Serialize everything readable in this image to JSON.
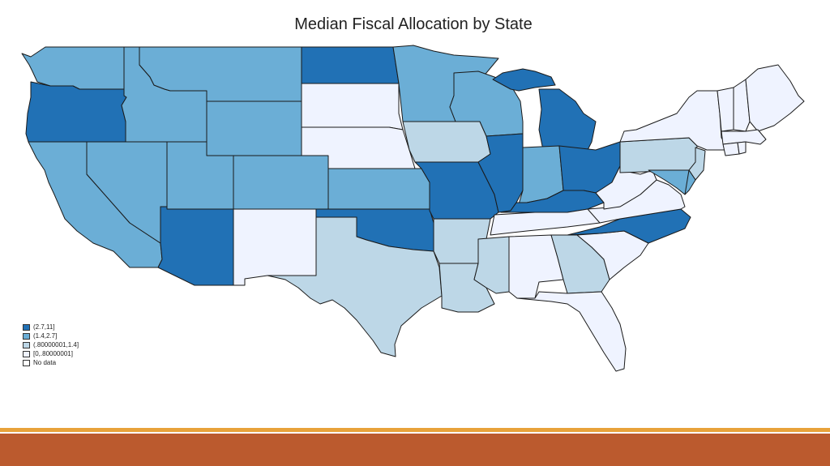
{
  "map": {
    "title": "Median Fiscal Allocation by State",
    "colors": {
      "c4": "#2171b5",
      "c3": "#6baed6",
      "c2": "#bdd7e7",
      "c1": "#eff3ff",
      "none": "#ffffff",
      "stroke": "#1a1a1a"
    },
    "legend": [
      {
        "label": "(2.7,11]",
        "cls": "c4"
      },
      {
        "label": "(1.4,2.7]",
        "cls": "c3"
      },
      {
        "label": "(.80000001,1.4]",
        "cls": "c2"
      },
      {
        "label": "[0,.80000001]",
        "cls": "c1"
      },
      {
        "label": "No data",
        "cls": "none"
      }
    ]
  },
  "footer": {
    "line_color": "#e8a23a",
    "bar_color": "#bb5a2e"
  }
}
